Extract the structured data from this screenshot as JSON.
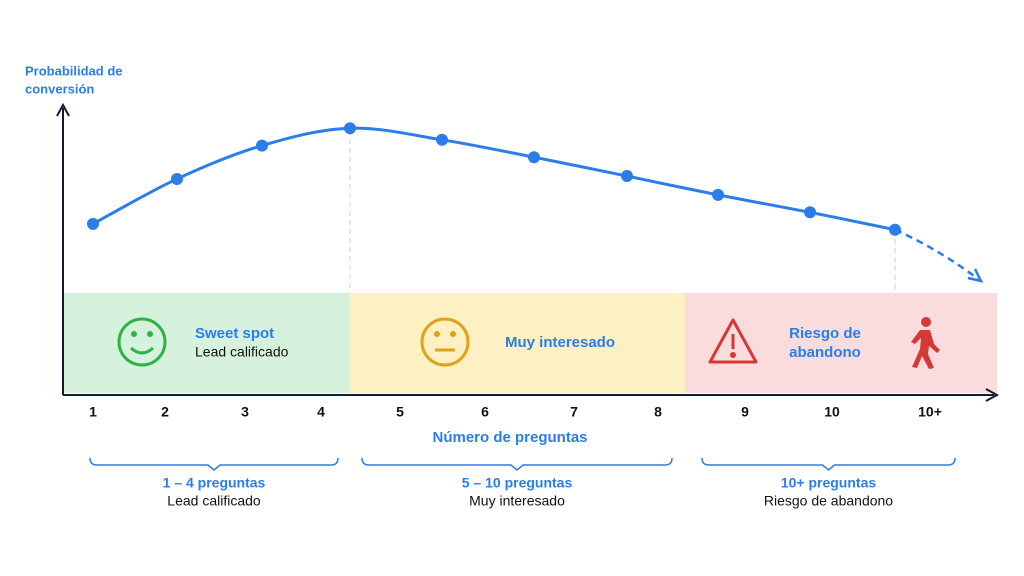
{
  "chart_data": {
    "type": "line",
    "y_label": [
      "Probabilidad de",
      "conversión"
    ],
    "x_label": "Número de preguntas",
    "categories": [
      "1",
      "2",
      "3",
      "4",
      "5",
      "6",
      "7",
      "8",
      "9",
      "10",
      "10+"
    ],
    "values": [
      59,
      74.5,
      86,
      92,
      88,
      82,
      75.5,
      69,
      63,
      57,
      null
    ],
    "color": "#2b7de9",
    "ylim": [
      0,
      100
    ],
    "zones": [
      {
        "title": [
          "Sweet spot"
        ],
        "subtitle": "Lead calificado"
      },
      {
        "title": [
          "Muy interesado"
        ]
      },
      {
        "title": [
          "Riesgo de",
          "abandono"
        ]
      }
    ],
    "groups": [
      {
        "title": "1 – 4 preguntas",
        "subtitle": "Lead calificado"
      },
      {
        "title": "5 – 10 preguntas",
        "subtitle": "Muy interesado"
      },
      {
        "title": "10+ preguntas",
        "subtitle": "Riesgo de abandono"
      }
    ]
  }
}
